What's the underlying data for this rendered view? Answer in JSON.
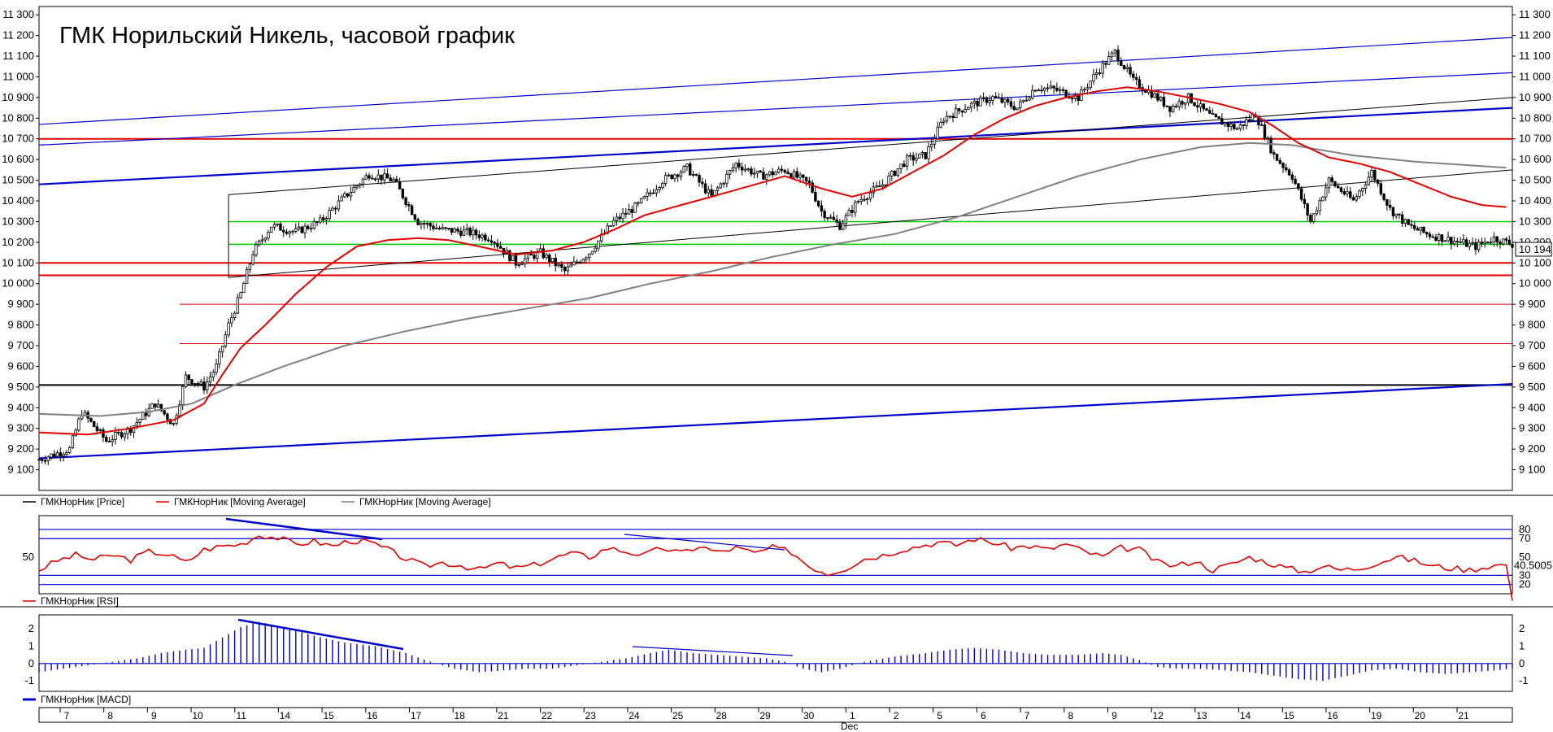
{
  "chart_data": [
    {
      "type": "candlestick",
      "title": "ГМК Норильский Никель, часовой график",
      "y_ticks": [
        9100,
        9200,
        9300,
        9400,
        9500,
        9600,
        9700,
        9800,
        9900,
        10000,
        10100,
        10200,
        10300,
        10400,
        10500,
        10600,
        10700,
        10800,
        10900,
        11000,
        11100,
        11200,
        11300
      ],
      "ylim": [
        9000,
        11340
      ],
      "last_price_label": "10 194",
      "x_ticks": [
        "7",
        "8",
        "9",
        "10",
        "11",
        "14",
        "15",
        "16",
        "17",
        "18",
        "21",
        "22",
        "23",
        "24",
        "25",
        "28",
        "29",
        "30",
        "1",
        "2",
        "5",
        "6",
        "7",
        "8",
        "9",
        "12",
        "13",
        "14",
        "15",
        "16",
        "19",
        "20",
        "21"
      ],
      "month_label": "Dec",
      "legend": [
        "ГМКНорНик [Price]",
        "ГМКНорНик [Moving Average]",
        "ГМКНорНик [Moving Average]"
      ],
      "colors": {
        "price": "#000000",
        "ma_fast": "#e00000",
        "ma_slow": "#808080",
        "support": "#e00000",
        "channel": "#0000cc",
        "level_green": "#00cc00"
      },
      "close_path": [
        [
          0,
          9150
        ],
        [
          10,
          9200
        ],
        [
          14,
          9380
        ],
        [
          22,
          9240
        ],
        [
          30,
          9300
        ],
        [
          38,
          9420
        ],
        [
          44,
          9320
        ],
        [
          48,
          9550
        ],
        [
          54,
          9500
        ],
        [
          58,
          9600
        ],
        [
          62,
          9800
        ],
        [
          66,
          9950
        ],
        [
          70,
          10150
        ],
        [
          76,
          10280
        ],
        [
          84,
          10250
        ],
        [
          92,
          10300
        ],
        [
          100,
          10420
        ],
        [
          108,
          10530
        ],
        [
          116,
          10500
        ],
        [
          124,
          10300
        ],
        [
          132,
          10260
        ],
        [
          140,
          10250
        ],
        [
          148,
          10220
        ],
        [
          156,
          10100
        ],
        [
          164,
          10150
        ],
        [
          172,
          10060
        ],
        [
          180,
          10150
        ],
        [
          188,
          10300
        ],
        [
          196,
          10380
        ],
        [
          204,
          10500
        ],
        [
          212,
          10560
        ],
        [
          220,
          10420
        ],
        [
          228,
          10580
        ],
        [
          236,
          10520
        ],
        [
          244,
          10550
        ],
        [
          252,
          10480
        ],
        [
          256,
          10350
        ],
        [
          262,
          10280
        ],
        [
          268,
          10400
        ],
        [
          276,
          10480
        ],
        [
          284,
          10600
        ],
        [
          290,
          10620
        ],
        [
          296,
          10800
        ],
        [
          304,
          10860
        ],
        [
          312,
          10900
        ],
        [
          320,
          10850
        ],
        [
          326,
          10950
        ],
        [
          332,
          10940
        ],
        [
          340,
          10900
        ],
        [
          346,
          11020
        ],
        [
          352,
          11120
        ],
        [
          358,
          10980
        ],
        [
          364,
          10920
        ],
        [
          370,
          10850
        ],
        [
          376,
          10900
        ],
        [
          384,
          10800
        ],
        [
          392,
          10750
        ],
        [
          398,
          10820
        ],
        [
          404,
          10620
        ],
        [
          410,
          10520
        ],
        [
          416,
          10300
        ],
        [
          422,
          10500
        ],
        [
          430,
          10400
        ],
        [
          436,
          10540
        ],
        [
          442,
          10360
        ],
        [
          448,
          10280
        ],
        [
          454,
          10240
        ],
        [
          462,
          10210
        ],
        [
          470,
          10180
        ],
        [
          476,
          10220
        ],
        [
          482,
          10190
        ]
      ],
      "ma_fast": [
        [
          0,
          9280
        ],
        [
          16,
          9270
        ],
        [
          30,
          9300
        ],
        [
          44,
          9340
        ],
        [
          54,
          9420
        ],
        [
          60,
          9560
        ],
        [
          66,
          9690
        ],
        [
          74,
          9800
        ],
        [
          84,
          9950
        ],
        [
          94,
          10080
        ],
        [
          104,
          10180
        ],
        [
          114,
          10210
        ],
        [
          124,
          10220
        ],
        [
          134,
          10210
        ],
        [
          144,
          10180
        ],
        [
          156,
          10140
        ],
        [
          168,
          10160
        ],
        [
          178,
          10200
        ],
        [
          188,
          10260
        ],
        [
          198,
          10330
        ],
        [
          210,
          10380
        ],
        [
          220,
          10420
        ],
        [
          232,
          10470
        ],
        [
          244,
          10520
        ],
        [
          256,
          10460
        ],
        [
          266,
          10420
        ],
        [
          276,
          10460
        ],
        [
          286,
          10540
        ],
        [
          296,
          10620
        ],
        [
          306,
          10720
        ],
        [
          316,
          10800
        ],
        [
          326,
          10860
        ],
        [
          336,
          10900
        ],
        [
          346,
          10930
        ],
        [
          356,
          10950
        ],
        [
          366,
          10930
        ],
        [
          376,
          10900
        ],
        [
          386,
          10870
        ],
        [
          396,
          10830
        ],
        [
          404,
          10760
        ],
        [
          412,
          10680
        ],
        [
          422,
          10610
        ],
        [
          432,
          10580
        ],
        [
          442,
          10540
        ],
        [
          452,
          10480
        ],
        [
          462,
          10420
        ],
        [
          472,
          10380
        ],
        [
          480,
          10370
        ]
      ],
      "ma_slow": [
        [
          0,
          9370
        ],
        [
          20,
          9360
        ],
        [
          36,
          9380
        ],
        [
          50,
          9420
        ],
        [
          64,
          9510
        ],
        [
          80,
          9600
        ],
        [
          100,
          9700
        ],
        [
          120,
          9770
        ],
        [
          140,
          9830
        ],
        [
          160,
          9880
        ],
        [
          180,
          9930
        ],
        [
          200,
          10000
        ],
        [
          220,
          10060
        ],
        [
          240,
          10130
        ],
        [
          260,
          10190
        ],
        [
          280,
          10240
        ],
        [
          300,
          10320
        ],
        [
          320,
          10420
        ],
        [
          340,
          10520
        ],
        [
          360,
          10600
        ],
        [
          380,
          10660
        ],
        [
          396,
          10680
        ],
        [
          410,
          10670
        ],
        [
          430,
          10620
        ],
        [
          450,
          10590
        ],
        [
          470,
          10570
        ],
        [
          480,
          10560
        ]
      ],
      "support_levels": [
        10700,
        10100,
        10040,
        9900,
        9710,
        9510
      ],
      "green_levels": [
        10300,
        10190
      ]
    },
    {
      "type": "line",
      "indicator": "ГМКНорНик [RSI]",
      "y_ticks": [
        80,
        70,
        50,
        30,
        20
      ],
      "last_value_label": "40.5005",
      "ylim": [
        10,
        95
      ],
      "values": [
        [
          0,
          36
        ],
        [
          6,
          46
        ],
        [
          12,
          52
        ],
        [
          18,
          47
        ],
        [
          24,
          52
        ],
        [
          30,
          47
        ],
        [
          36,
          56
        ],
        [
          42,
          53
        ],
        [
          48,
          44
        ],
        [
          54,
          58
        ],
        [
          60,
          62
        ],
        [
          66,
          64
        ],
        [
          72,
          74
        ],
        [
          78,
          71
        ],
        [
          84,
          64
        ],
        [
          90,
          67
        ],
        [
          96,
          62
        ],
        [
          102,
          68
        ],
        [
          108,
          66
        ],
        [
          114,
          58
        ],
        [
          120,
          48
        ],
        [
          126,
          40
        ],
        [
          132,
          44
        ],
        [
          138,
          41
        ],
        [
          144,
          36
        ],
        [
          150,
          43
        ],
        [
          156,
          38
        ],
        [
          162,
          41
        ],
        [
          168,
          48
        ],
        [
          174,
          54
        ],
        [
          180,
          50
        ],
        [
          186,
          60
        ],
        [
          192,
          56
        ],
        [
          198,
          52
        ],
        [
          204,
          60
        ],
        [
          210,
          54
        ],
        [
          216,
          62
        ],
        [
          222,
          55
        ],
        [
          228,
          60
        ],
        [
          234,
          54
        ],
        [
          240,
          60
        ],
        [
          246,
          56
        ],
        [
          252,
          40
        ],
        [
          258,
          32
        ],
        [
          264,
          38
        ],
        [
          270,
          48
        ],
        [
          276,
          52
        ],
        [
          282,
          58
        ],
        [
          288,
          62
        ],
        [
          294,
          66
        ],
        [
          300,
          63
        ],
        [
          306,
          70
        ],
        [
          312,
          66
        ],
        [
          318,
          60
        ],
        [
          324,
          62
        ],
        [
          330,
          58
        ],
        [
          336,
          64
        ],
        [
          342,
          56
        ],
        [
          348,
          50
        ],
        [
          354,
          60
        ],
        [
          360,
          58
        ],
        [
          366,
          44
        ],
        [
          372,
          40
        ],
        [
          378,
          46
        ],
        [
          384,
          36
        ],
        [
          390,
          42
        ],
        [
          396,
          50
        ],
        [
          402,
          44
        ],
        [
          408,
          38
        ],
        [
          414,
          34
        ],
        [
          420,
          40
        ],
        [
          426,
          36
        ],
        [
          432,
          38
        ],
        [
          438,
          44
        ],
        [
          444,
          50
        ],
        [
          450,
          46
        ],
        [
          456,
          40
        ],
        [
          462,
          38
        ],
        [
          468,
          36
        ],
        [
          474,
          40
        ],
        [
          480,
          42
        ]
      ]
    },
    {
      "type": "bar",
      "indicator": "ГМКНорНик [MACD]",
      "y_ticks": [
        2,
        1,
        0,
        -1
      ],
      "ylim": [
        -1.6,
        2.8
      ],
      "values": [
        [
          0,
          -0.5
        ],
        [
          8,
          -0.3
        ],
        [
          16,
          -0.1
        ],
        [
          24,
          0.1
        ],
        [
          32,
          0.3
        ],
        [
          40,
          0.6
        ],
        [
          48,
          0.8
        ],
        [
          54,
          0.9
        ],
        [
          60,
          1.5
        ],
        [
          66,
          2.1
        ],
        [
          72,
          2.4
        ],
        [
          80,
          2.1
        ],
        [
          90,
          1.6
        ],
        [
          100,
          1.2
        ],
        [
          110,
          1.0
        ],
        [
          120,
          0.6
        ],
        [
          128,
          0.1
        ],
        [
          136,
          -0.3
        ],
        [
          144,
          -0.5
        ],
        [
          152,
          -0.4
        ],
        [
          160,
          -0.3
        ],
        [
          168,
          -0.3
        ],
        [
          176,
          -0.1
        ],
        [
          184,
          0.1
        ],
        [
          192,
          0.3
        ],
        [
          200,
          0.6
        ],
        [
          206,
          0.8
        ],
        [
          214,
          0.6
        ],
        [
          222,
          0.5
        ],
        [
          230,
          0.4
        ],
        [
          238,
          0.3
        ],
        [
          244,
          0.1
        ],
        [
          250,
          -0.3
        ],
        [
          256,
          -0.5
        ],
        [
          262,
          -0.3
        ],
        [
          270,
          0.1
        ],
        [
          280,
          0.4
        ],
        [
          290,
          0.6
        ],
        [
          298,
          0.8
        ],
        [
          306,
          0.9
        ],
        [
          314,
          0.8
        ],
        [
          322,
          0.6
        ],
        [
          330,
          0.5
        ],
        [
          340,
          0.5
        ],
        [
          348,
          0.6
        ],
        [
          354,
          0.5
        ],
        [
          360,
          0.2
        ],
        [
          366,
          -0.2
        ],
        [
          372,
          -0.3
        ],
        [
          380,
          -0.3
        ],
        [
          388,
          -0.4
        ],
        [
          396,
          -0.5
        ],
        [
          404,
          -0.7
        ],
        [
          412,
          -0.9
        ],
        [
          420,
          -1.0
        ],
        [
          428,
          -0.7
        ],
        [
          436,
          -0.4
        ],
        [
          444,
          -0.3
        ],
        [
          452,
          -0.5
        ],
        [
          460,
          -0.6
        ],
        [
          468,
          -0.5
        ],
        [
          476,
          -0.4
        ],
        [
          482,
          -0.3
        ]
      ]
    }
  ]
}
